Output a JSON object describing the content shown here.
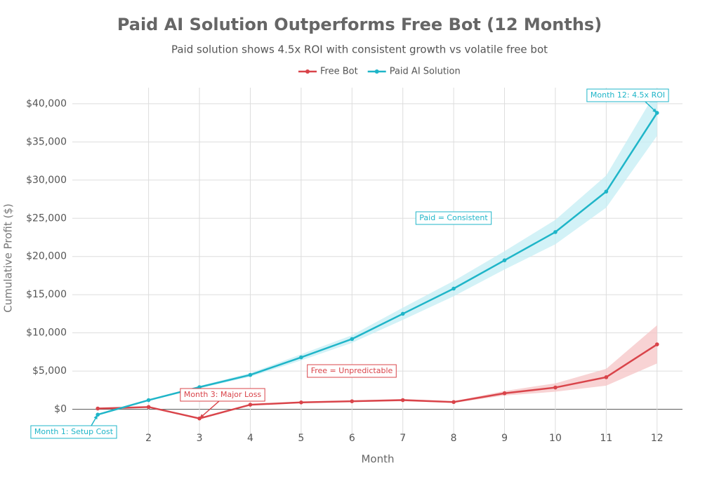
{
  "chart_data": {
    "type": "line",
    "title": "Paid AI Solution Outperforms Free Bot (12 Months)",
    "subtitle": "Paid solution shows 4.5x ROI with consistent growth vs volatile free bot",
    "x_label": "Month",
    "y_label": "Cumulative Profit ($)",
    "x": [
      1,
      2,
      3,
      4,
      5,
      6,
      7,
      8,
      9,
      10,
      11,
      12
    ],
    "xlim": [
      0.5,
      12.5
    ],
    "xticks": [
      2,
      3,
      4,
      5,
      6,
      7,
      8,
      9,
      10,
      11,
      12
    ],
    "ylim": [
      -3800,
      42100
    ],
    "yticks": [
      {
        "value": 0,
        "label": "$0"
      },
      {
        "value": 5000,
        "label": "$5,000"
      },
      {
        "value": 10000,
        "label": "$10,000"
      },
      {
        "value": 15000,
        "label": "$15,000"
      },
      {
        "value": 20000,
        "label": "$20,000"
      },
      {
        "value": 25000,
        "label": "$25,000"
      },
      {
        "value": 30000,
        "label": "$30,000"
      },
      {
        "value": 35000,
        "label": "$35,000"
      },
      {
        "value": 40000,
        "label": "$40,000"
      }
    ],
    "grid": true,
    "series": [
      {
        "name": "Free Bot",
        "color": "#d9444a",
        "band_color": "#f5c4c6",
        "values": [
          100,
          300,
          -1200,
          600,
          900,
          1050,
          1200,
          950,
          2100,
          2850,
          4200,
          8500
        ],
        "band_low": [
          100,
          300,
          -1200,
          550,
          850,
          950,
          1050,
          850,
          1800,
          2300,
          3100,
          6000
        ],
        "band_high": [
          100,
          300,
          -1200,
          650,
          950,
          1150,
          1350,
          1050,
          2400,
          3400,
          5300,
          11000
        ]
      },
      {
        "name": "Paid AI Solution",
        "color": "#1fb5c8",
        "band_color": "#c4eef4",
        "values": [
          -700,
          1200,
          2900,
          4500,
          6800,
          9200,
          12500,
          15800,
          19500,
          23200,
          28500,
          38800
        ],
        "band_low": [
          -700,
          1150,
          2750,
          4250,
          6400,
          8700,
          11700,
          14800,
          18300,
          21600,
          26400,
          35800
        ],
        "band_high": [
          -700,
          1250,
          3050,
          4750,
          7200,
          9700,
          13300,
          16800,
          20700,
          24800,
          30600,
          41800
        ]
      }
    ],
    "annotations": [
      {
        "text": "Month 1: Setup Cost",
        "color": "#1fb5c8"
      },
      {
        "text": "Month 3: Major Loss",
        "color": "#d9444a"
      },
      {
        "text": "Month 12: 4.5x ROI",
        "color": "#1fb5c8"
      },
      {
        "text": "Paid = Consistent",
        "color": "#1fb5c8"
      },
      {
        "text": "Free = Unpredictable",
        "color": "#d9444a"
      }
    ]
  }
}
